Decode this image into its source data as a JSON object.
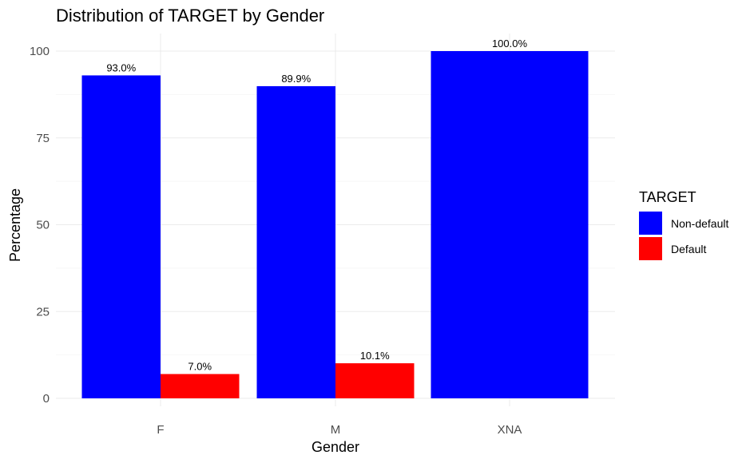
{
  "chart_data": {
    "type": "bar",
    "title": "Distribution of TARGET by Gender",
    "xlabel": "Gender",
    "ylabel": "Percentage",
    "categories": [
      "F",
      "M",
      "XNA"
    ],
    "series": [
      {
        "name": "Non-default",
        "values": [
          93.0,
          89.9,
          100.0
        ],
        "labels": [
          "93.0%",
          "89.9%",
          "100.0%"
        ],
        "color": "#0000ff"
      },
      {
        "name": "Default",
        "values": [
          7.0,
          10.1,
          null
        ],
        "labels": [
          "7.0%",
          "10.1%",
          null
        ],
        "color": "#ff0000"
      }
    ],
    "ylim": [
      0,
      100
    ],
    "yticks": [
      0,
      25,
      50,
      75,
      100
    ],
    "grid": true,
    "legend": {
      "title": "TARGET",
      "position": "right"
    }
  }
}
